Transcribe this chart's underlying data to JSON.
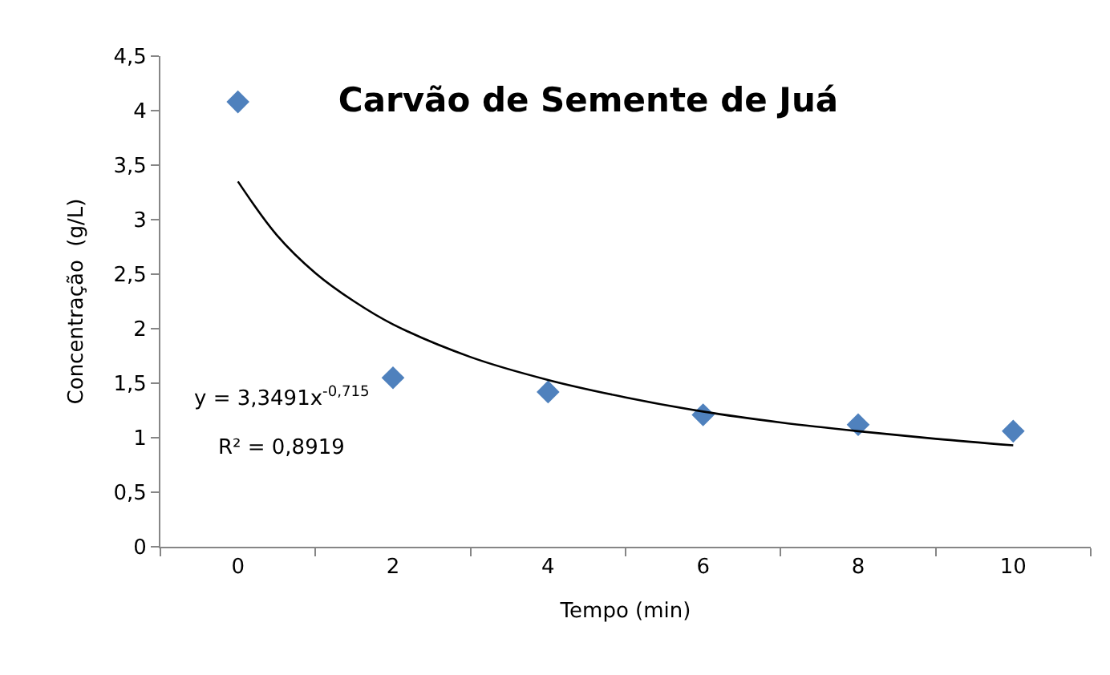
{
  "chart_data": {
    "type": "scatter",
    "title": "Carvão de Semente de Juá",
    "xlabel": "Tempo (min)",
    "ylabel": "Concentração  (g/L)",
    "x": [
      0,
      2,
      4,
      6,
      8,
      10
    ],
    "xlim": [
      -1,
      11
    ],
    "xticks": [
      {
        "value": -1,
        "label": null
      },
      0,
      {
        "value": 1,
        "label": null
      },
      2,
      {
        "value": 3,
        "label": null
      },
      4,
      {
        "value": 5,
        "label": null
      },
      6,
      {
        "value": 7,
        "label": null
      },
      8,
      {
        "value": 9,
        "label": null
      },
      10,
      {
        "value": 11,
        "label": null
      }
    ],
    "ylim": [
      0,
      4.5
    ],
    "yticks": [
      0,
      {
        "value": 0.5,
        "label": "0,5"
      },
      1,
      {
        "value": 1.5,
        "label": "1,5"
      },
      2,
      {
        "value": 2.5,
        "label": "2,5"
      },
      3,
      {
        "value": 3.5,
        "label": "3,5"
      },
      4,
      {
        "value": 4.5,
        "label": "4,5"
      }
    ],
    "marker": "diamond",
    "series": [
      {
        "color": "#4f81bd",
        "values": [
          4.08,
          1.55,
          1.42,
          1.21,
          1.12,
          1.06
        ]
      },
      {
        "type": "line",
        "color": "#000000",
        "line_style": "solid",
        "marker": "none",
        "x": [
          0,
          0.5,
          1,
          1.5,
          2,
          3,
          4,
          5,
          6,
          7,
          8,
          9,
          10
        ],
        "values": [
          3.35,
          2.86,
          2.51,
          2.25,
          2.04,
          1.74,
          1.53,
          1.37,
          1.24,
          1.14,
          1.06,
          0.99,
          0.93
        ]
      }
    ],
    "annotations": [
      "y = 3,3491x$^{-0,715}$",
      "R² = 0,8919"
    ]
  }
}
